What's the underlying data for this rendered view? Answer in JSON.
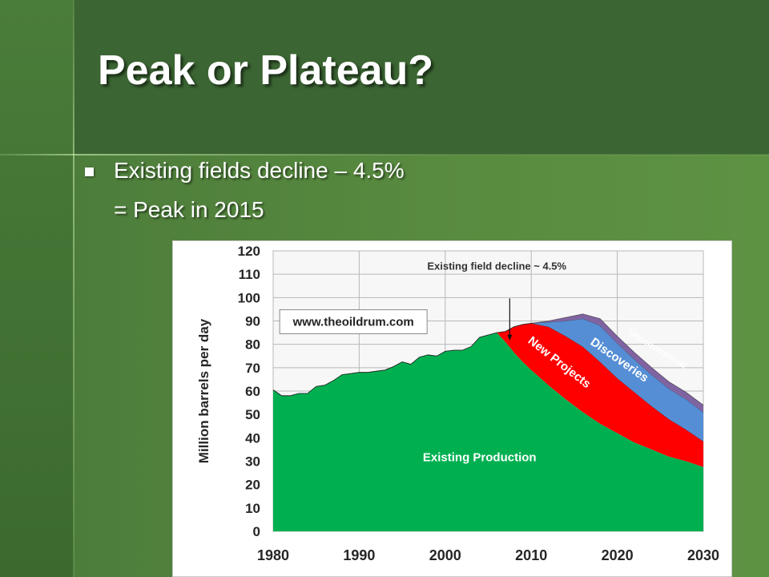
{
  "slide": {
    "title": "Peak or Plateau?",
    "bullet": "Existing fields decline – 4.5%",
    "subline": "= Peak in 2015"
  },
  "colors": {
    "existing": "#00b050",
    "new_projects": "#ff0000",
    "discoveries": "#558ed5",
    "unconventional": "#8064a2"
  },
  "chart_data": {
    "type": "area",
    "stacked": true,
    "ylabel": "Million barrels per day",
    "ylim": [
      0,
      120
    ],
    "xlim": [
      1980,
      2030
    ],
    "x_ticks": [
      "1980",
      "1990",
      "2000",
      "2010",
      "2020",
      "2030"
    ],
    "y_ticks": [
      "0",
      "10",
      "20",
      "30",
      "40",
      "50",
      "60",
      "70",
      "80",
      "90",
      "100",
      "110",
      "120"
    ],
    "grid": true,
    "x": [
      1980,
      1981,
      1982,
      1983,
      1984,
      1985,
      1986,
      1987,
      1988,
      1989,
      1990,
      1991,
      1992,
      1993,
      1994,
      1995,
      1996,
      1997,
      1998,
      1999,
      2000,
      2001,
      2002,
      2003,
      2004,
      2005,
      2006,
      2007,
      2008,
      2009,
      2010,
      2012,
      2014,
      2016,
      2018,
      2020,
      2022,
      2024,
      2026,
      2028,
      2030
    ],
    "series": [
      {
        "name": "Existing Production",
        "values": [
          60.5,
          58,
          58,
          59,
          59,
          62,
          62.5,
          64.5,
          67,
          67.5,
          68,
          68,
          68.5,
          69,
          70.5,
          72.5,
          71.5,
          74.5,
          75.5,
          75,
          77,
          77.5,
          77.5,
          79,
          83,
          84,
          85,
          81,
          76.5,
          72.5,
          69,
          62.5,
          56.5,
          51,
          46,
          42,
          38,
          35,
          32,
          30,
          27.5
        ]
      },
      {
        "name": "New Projects",
        "values": [
          0,
          0,
          0,
          0,
          0,
          0,
          0,
          0,
          0,
          0,
          0,
          0,
          0,
          0,
          0,
          0,
          0,
          0,
          0,
          0,
          0,
          0,
          0,
          0,
          0,
          0,
          0,
          4.5,
          11,
          16,
          20,
          25,
          27,
          28,
          26.5,
          23.5,
          21.5,
          18.5,
          16,
          13.5,
          11
        ]
      },
      {
        "name": "Discoveries",
        "values": [
          0,
          0,
          0,
          0,
          0,
          0,
          0,
          0,
          0,
          0,
          0,
          0,
          0,
          0,
          0,
          0,
          0,
          0,
          0,
          0,
          0,
          0,
          0,
          0,
          0,
          0,
          0,
          0,
          0,
          0,
          0,
          2,
          6.5,
          12,
          15.5,
          15,
          14,
          13.5,
          13,
          13,
          12.5
        ]
      },
      {
        "name": "Unconventional",
        "values": [
          0,
          0,
          0,
          0,
          0,
          0,
          0,
          0,
          0,
          0,
          0,
          0,
          0,
          0,
          0,
          0,
          0,
          0,
          0,
          0,
          0,
          0,
          0,
          0,
          0,
          0,
          0,
          0,
          0,
          0,
          0,
          0.5,
          1.5,
          2,
          3,
          3,
          3,
          3,
          3,
          3,
          3
        ]
      }
    ],
    "annotations": [
      {
        "text": "Existing field decline ~ 4.5%",
        "at": [
          2006,
          112
        ],
        "arrow_to": [
          2007.5,
          81
        ]
      },
      {
        "text": "www.theoildrum.com",
        "at": [
          1987,
          90
        ],
        "boxed": true
      },
      {
        "text": "New Projects",
        "at": [
          2013,
          71
        ],
        "rotation": 38
      },
      {
        "text": "Discoveries",
        "at": [
          2020,
          72
        ],
        "rotation": 35
      },
      {
        "text": "Unconventional",
        "at": [
          2024.5,
          77
        ],
        "rotation": 32
      },
      {
        "text": "Existing Production",
        "at": [
          2004,
          30
        ]
      }
    ]
  }
}
